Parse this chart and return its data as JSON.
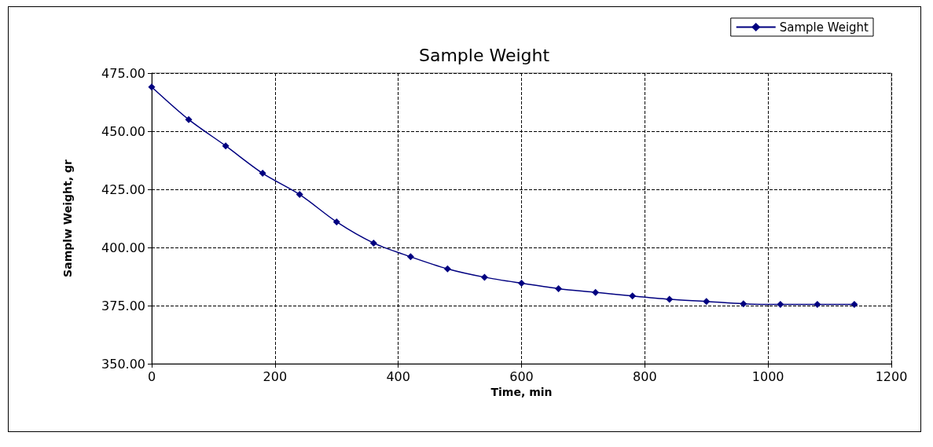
{
  "chart_data": {
    "type": "line",
    "title": "Sample Weight",
    "xlabel": "Time, min",
    "ylabel": "Samplw Weight, gr",
    "x": [
      0,
      60,
      120,
      180,
      240,
      300,
      360,
      420,
      480,
      540,
      600,
      660,
      720,
      780,
      840,
      900,
      960,
      1020,
      1080,
      1140
    ],
    "series": [
      {
        "name": "Sample Weight",
        "color": "#000080",
        "values": [
          469,
          455,
          443.7,
          431.9,
          422.8,
          411,
          401.9,
          396,
          390.8,
          387.2,
          384.6,
          382.3,
          380.7,
          379.1,
          377.7,
          376.8,
          375.8,
          375.5,
          375.5,
          375.5
        ]
      }
    ],
    "xlim": [
      0,
      1200
    ],
    "xticks": [
      0,
      200,
      400,
      600,
      800,
      1000,
      1200
    ],
    "ylim": [
      350,
      475
    ],
    "yticks": [
      {
        "value": 350,
        "label": "350.00"
      },
      {
        "value": 375,
        "label": "375.00"
      },
      {
        "value": 400,
        "label": "400.00"
      },
      {
        "value": 425,
        "label": "425.00"
      },
      {
        "value": 450,
        "label": "450.00"
      },
      {
        "value": 475,
        "label": "475.00"
      }
    ],
    "grid": true,
    "legend": "top right",
    "marker": "diamond",
    "line_style": "solid"
  }
}
